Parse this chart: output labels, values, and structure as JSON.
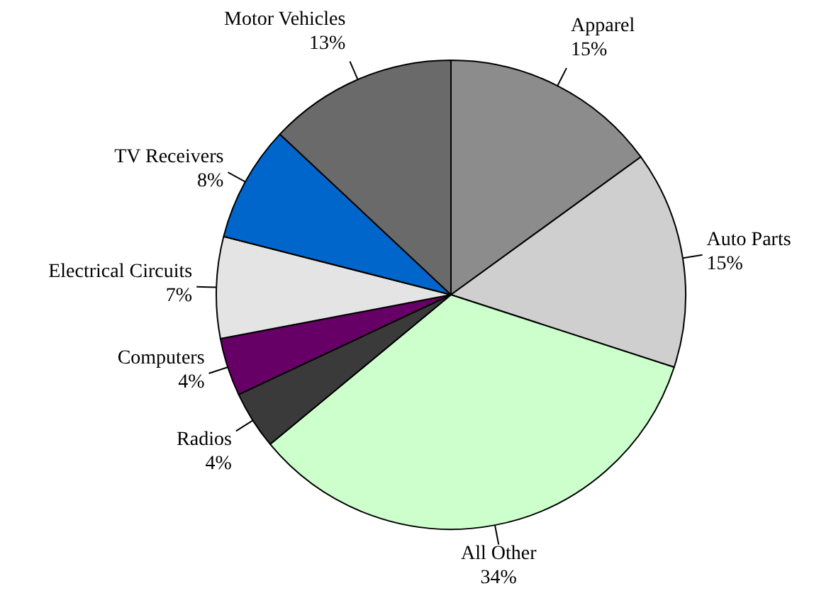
{
  "chart_data": {
    "type": "pie",
    "categories": [
      "Apparel",
      "Auto Parts",
      "All Other",
      "Radios",
      "Computers",
      "Electrical Circuits",
      "TV Receivers",
      "Motor Vehicles"
    ],
    "values": [
      15,
      15,
      34,
      4,
      4,
      7,
      8,
      13
    ],
    "value_labels": [
      "15%",
      "15%",
      "34%",
      "4%",
      "4%",
      "7%",
      "8%",
      "13%"
    ],
    "colors": [
      "#8c8c8c",
      "#cfcfcf",
      "#ccffcc",
      "#3a3a3a",
      "#660066",
      "#e4e4e4",
      "#0066cc",
      "#6a6a6a"
    ],
    "legend": false
  }
}
